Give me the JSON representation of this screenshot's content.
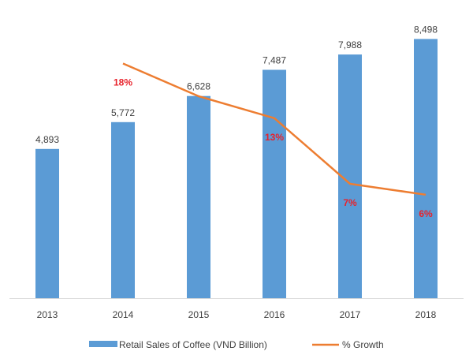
{
  "colors": {
    "bar": "#5B9BD5",
    "line": "#ED7D31",
    "growth_label": "#E8222B",
    "axis": "#D9D9D9",
    "text": "#404040"
  },
  "chart_data": {
    "type": "bar",
    "categories": [
      "2013",
      "2014",
      "2015",
      "2016",
      "2017",
      "2018"
    ],
    "series": [
      {
        "name": "Retail Sales of Coffee (VND Billion)",
        "type": "bar",
        "values": [
          4893,
          5772,
          6628,
          7487,
          7988,
          8498
        ],
        "labels": [
          "4,893",
          "5,772",
          "6,628",
          "7,487",
          "7,988",
          "8,498"
        ]
      },
      {
        "name": "% Growth",
        "type": "line",
        "values": [
          null,
          18,
          15,
          13,
          7,
          6
        ],
        "labels": [
          "",
          "18%",
          "",
          "13%",
          "7%",
          "6%"
        ]
      }
    ],
    "ylim": [
      0,
      9000
    ],
    "growth_ylim": [
      0,
      22
    ],
    "grid": false,
    "legend": "bottom",
    "title": "",
    "xlabel": "",
    "ylabel": ""
  }
}
